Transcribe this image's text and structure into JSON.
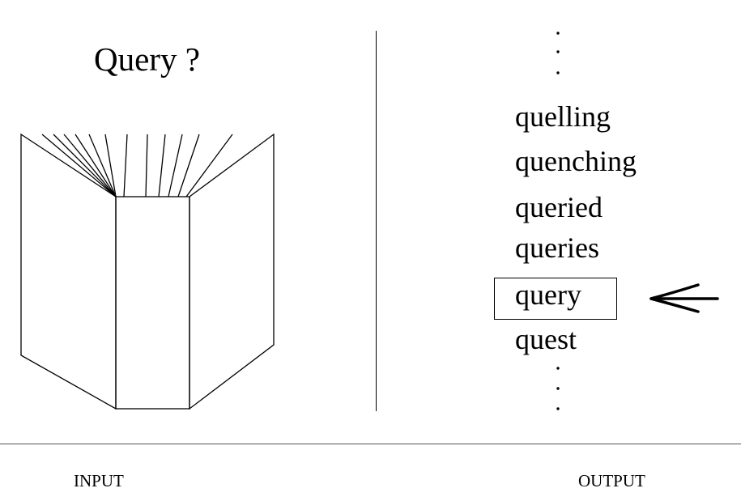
{
  "input_panel": {
    "prompt": "Query ?",
    "book_icon": "open-book-icon"
  },
  "output_panel": {
    "words": [
      "quelling",
      "quenching",
      "queried",
      "queries",
      "query",
      "quest"
    ],
    "selected_word": "query",
    "pointer_icon": "left-arrow-icon"
  },
  "captions": {
    "input": "INPUT",
    "output": "OUTPUT"
  }
}
